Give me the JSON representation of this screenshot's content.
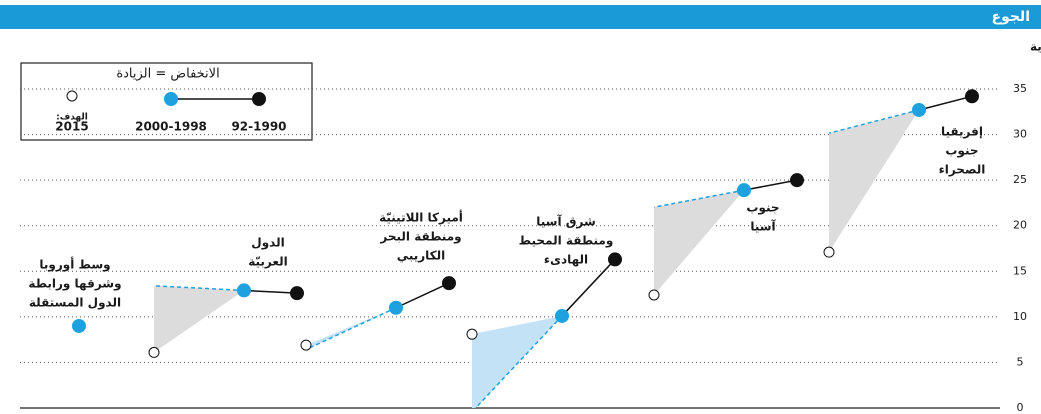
{
  "chart_data": {
    "type": "slope",
    "title": "الجوع",
    "subtitle": "النسبة المئوية للسكّان الذين يعانون سوء التغذية",
    "legend": {
      "title": "الانخفاض = الزيادة",
      "target_label": "الهدف:",
      "periods": [
        "92-1990",
        "2000-1998",
        "2015"
      ]
    },
    "series": [
      {
        "name": "92-1990",
        "color": "#111111"
      },
      {
        "name": "2000-1998",
        "color": "#1ea1de"
      },
      {
        "name": "2015",
        "color": "#ffffff"
      }
    ],
    "regions": [
      {
        "name": [
          "وسط أوروبا",
          "وشرقها ورابطة",
          "الدول المستقلة"
        ],
        "values": [
          null,
          9.0,
          null
        ]
      },
      {
        "name": [
          "الدول",
          "العربيّة"
        ],
        "values": [
          12.6,
          12.9,
          6.1
        ]
      },
      {
        "name": [
          "أميركا اللاتينيّة",
          "ومنطقة البحر",
          "الكاريبي"
        ],
        "values": [
          13.7,
          11.0,
          6.9
        ]
      },
      {
        "name": [
          "شرق آسيا",
          "ومنطقة المحيط",
          "الهادىء"
        ],
        "values": [
          16.3,
          10.1,
          8.1
        ]
      },
      {
        "name": [
          "جنوب",
          "آسيا"
        ],
        "values": [
          25.0,
          23.9,
          12.4
        ]
      },
      {
        "name": [
          "إفريقيا",
          "جنوب",
          "الصحراء"
        ],
        "values": [
          34.2,
          32.7,
          17.1
        ]
      }
    ],
    "ylim": [
      0,
      35
    ],
    "yticks": [
      0,
      5,
      10,
      15,
      20,
      25,
      30,
      35
    ],
    "grid": true
  }
}
